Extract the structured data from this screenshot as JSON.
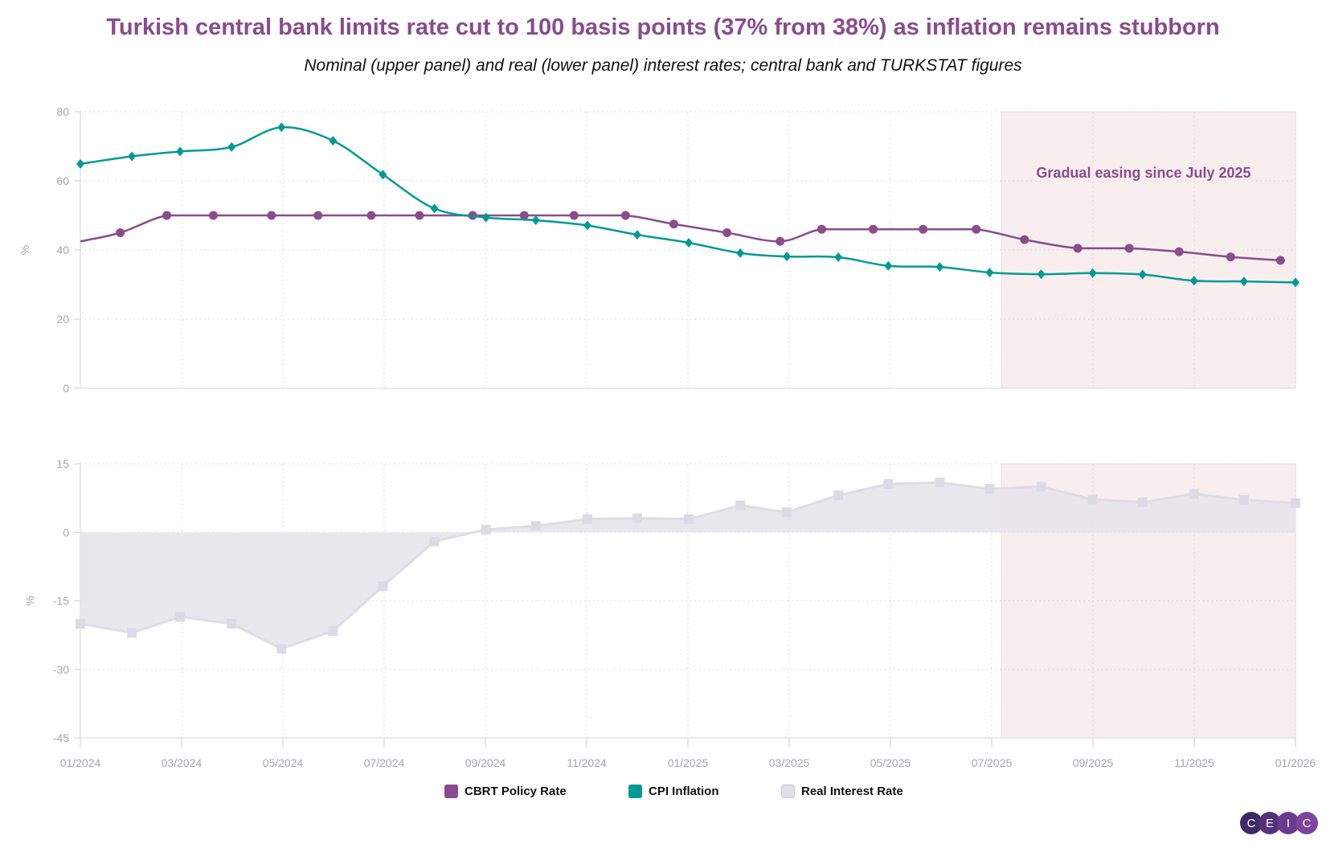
{
  "title": "Turkish central bank limits rate cut to 100 basis points (37% from 38%) as inflation remains stubborn",
  "subtitle": "Nominal (upper panel) and real (lower panel) interest rates; central bank and TURKSTAT figures",
  "colors": {
    "policy": "#8a4b8f",
    "cpi": "#009a96",
    "real_fill": "#e5e3eb",
    "real_marker": "#dcdae5",
    "shade": "#f9eeee",
    "title": "#8a4b8f"
  },
  "legend": [
    {
      "label": "CBRT Policy Rate",
      "color": "#8a4b8f"
    },
    {
      "label": "CPI Inflation",
      "color": "#009a96"
    },
    {
      "label": "Real Interest Rate",
      "color": "#e0dee7"
    }
  ],
  "logo": [
    "C",
    "E",
    "I",
    "C"
  ],
  "chart_data": [
    {
      "type": "line",
      "panel": "upper",
      "ylabel": "%",
      "ylim": [
        0,
        80
      ],
      "yticks": [
        0,
        20,
        40,
        60,
        80
      ],
      "xlim": [
        "2024-01-01",
        "2026-01-01"
      ],
      "xticks": [
        "01/2024",
        "03/2024",
        "05/2024",
        "07/2024",
        "09/2024",
        "11/2024",
        "01/2025",
        "03/2025",
        "05/2025",
        "07/2025",
        "09/2025",
        "11/2025",
        "01/2026"
      ],
      "grid": true,
      "annotation": {
        "text": "Gradual easing since July 2025",
        "shaded_from": "2025-07-08",
        "shaded_to": "2026-01-01"
      },
      "series": [
        {
          "name": "CBRT Policy Rate",
          "marker": "circle",
          "x": [
            "2024-01-01",
            "2024-01-25",
            "2024-02-22",
            "2024-03-21",
            "2024-04-25",
            "2024-05-23",
            "2024-06-24",
            "2024-07-23",
            "2024-08-24",
            "2024-09-24",
            "2024-10-24",
            "2024-11-24",
            "2024-12-23",
            "2025-01-24",
            "2025-02-25",
            "2025-03-22",
            "2025-04-22",
            "2025-05-22",
            "2025-06-23",
            "2025-07-22",
            "2025-08-23",
            "2025-09-23",
            "2025-10-23",
            "2025-11-23",
            "2025-12-23"
          ],
          "values": [
            42.5,
            45,
            50,
            50,
            50,
            50,
            50,
            50,
            50,
            50,
            50,
            50,
            47.5,
            45,
            42.5,
            46,
            46,
            46,
            46,
            43,
            40.5,
            40.5,
            39.5,
            38,
            37
          ],
          "first_marker": false
        },
        {
          "name": "CPI Inflation",
          "marker": "diamond",
          "x": [
            "2024-01-01",
            "2024-02-01",
            "2024-03-01",
            "2024-04-01",
            "2024-05-01",
            "2024-06-01",
            "2024-07-01",
            "2024-08-01",
            "2024-09-01",
            "2024-10-01",
            "2024-11-01",
            "2024-12-01",
            "2025-01-01",
            "2025-02-01",
            "2025-03-01",
            "2025-04-01",
            "2025-05-01",
            "2025-06-01",
            "2025-07-01",
            "2025-08-01",
            "2025-09-01",
            "2025-10-01",
            "2025-11-01",
            "2025-12-01",
            "2026-01-01"
          ],
          "values": [
            64.9,
            67.1,
            68.5,
            69.8,
            75.5,
            71.6,
            61.8,
            52.0,
            49.4,
            48.6,
            47.1,
            44.4,
            42.1,
            39.1,
            38.1,
            37.9,
            35.4,
            35.1,
            33.5,
            33.0,
            33.3,
            32.9,
            31.1,
            30.9,
            30.6
          ]
        }
      ]
    },
    {
      "type": "area",
      "panel": "lower",
      "ylabel": "%",
      "ylim": [
        -45,
        15
      ],
      "yticks": [
        -45,
        -30,
        -15,
        0,
        15
      ],
      "grid": true,
      "series": [
        {
          "name": "Real Interest Rate",
          "marker": "square",
          "x": [
            "2024-01-01",
            "2024-02-01",
            "2024-03-01",
            "2024-04-01",
            "2024-05-01",
            "2024-06-01",
            "2024-07-01",
            "2024-08-01",
            "2024-09-01",
            "2024-10-01",
            "2024-11-01",
            "2024-12-01",
            "2025-01-01",
            "2025-02-01",
            "2025-03-01",
            "2025-04-01",
            "2025-05-01",
            "2025-06-01",
            "2025-07-01",
            "2025-08-01",
            "2025-09-01",
            "2025-10-01",
            "2025-11-01",
            "2025-12-01",
            "2026-01-01"
          ],
          "values": [
            -20,
            -22,
            -18.5,
            -20,
            -25.5,
            -21.6,
            -11.8,
            -2,
            0.6,
            1.4,
            2.9,
            3.1,
            2.9,
            5.9,
            4.4,
            8.1,
            10.6,
            10.9,
            9.5,
            10.0,
            7.2,
            6.6,
            8.4,
            7.1,
            6.4
          ]
        }
      ]
    }
  ]
}
